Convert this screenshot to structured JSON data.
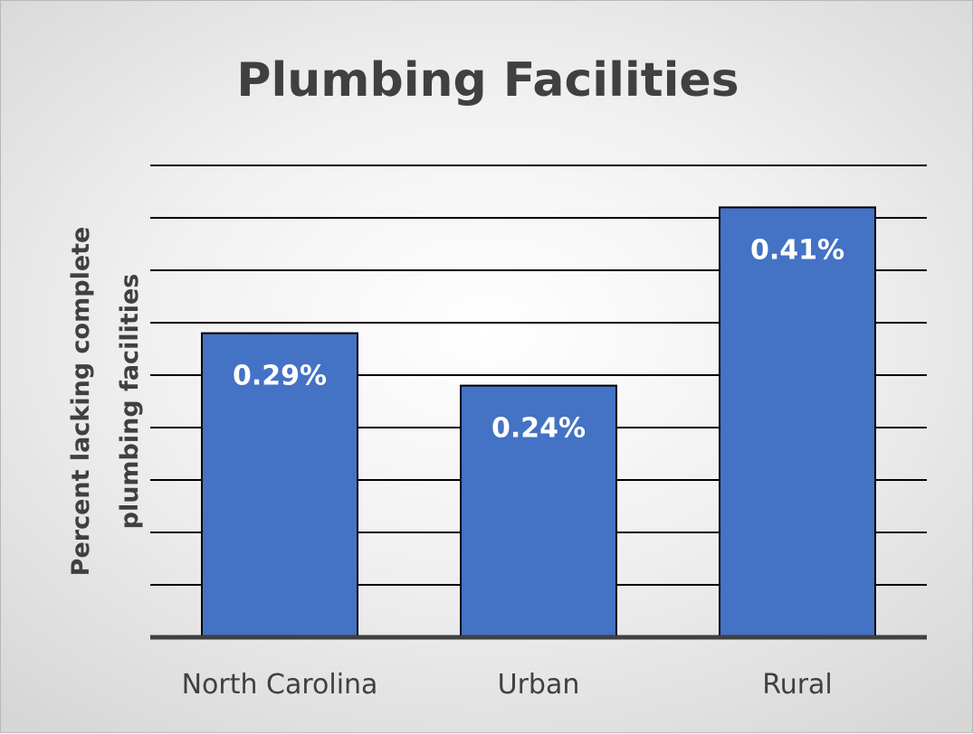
{
  "chart_data": {
    "type": "bar",
    "title": "Plumbing Facilities",
    "ylabel": "Percent lacking complete plumbing facilities",
    "ylabel_lines": [
      "Percent lacking complete",
      "plumbing facilities"
    ],
    "xlabel": "",
    "categories": [
      "North Carolina",
      "Urban",
      "Rural"
    ],
    "values": [
      0.29,
      0.24,
      0.41
    ],
    "data_labels": [
      "0.29%",
      "0.24%",
      "0.41%"
    ],
    "ylim": [
      0,
      0.45
    ],
    "y_gridline_step": 0.05,
    "grid": true,
    "legend": "none",
    "colors": {
      "bar": "#4472c4",
      "bar_outline": "#000000",
      "gridline": "#000000",
      "axis": "#404040"
    }
  }
}
